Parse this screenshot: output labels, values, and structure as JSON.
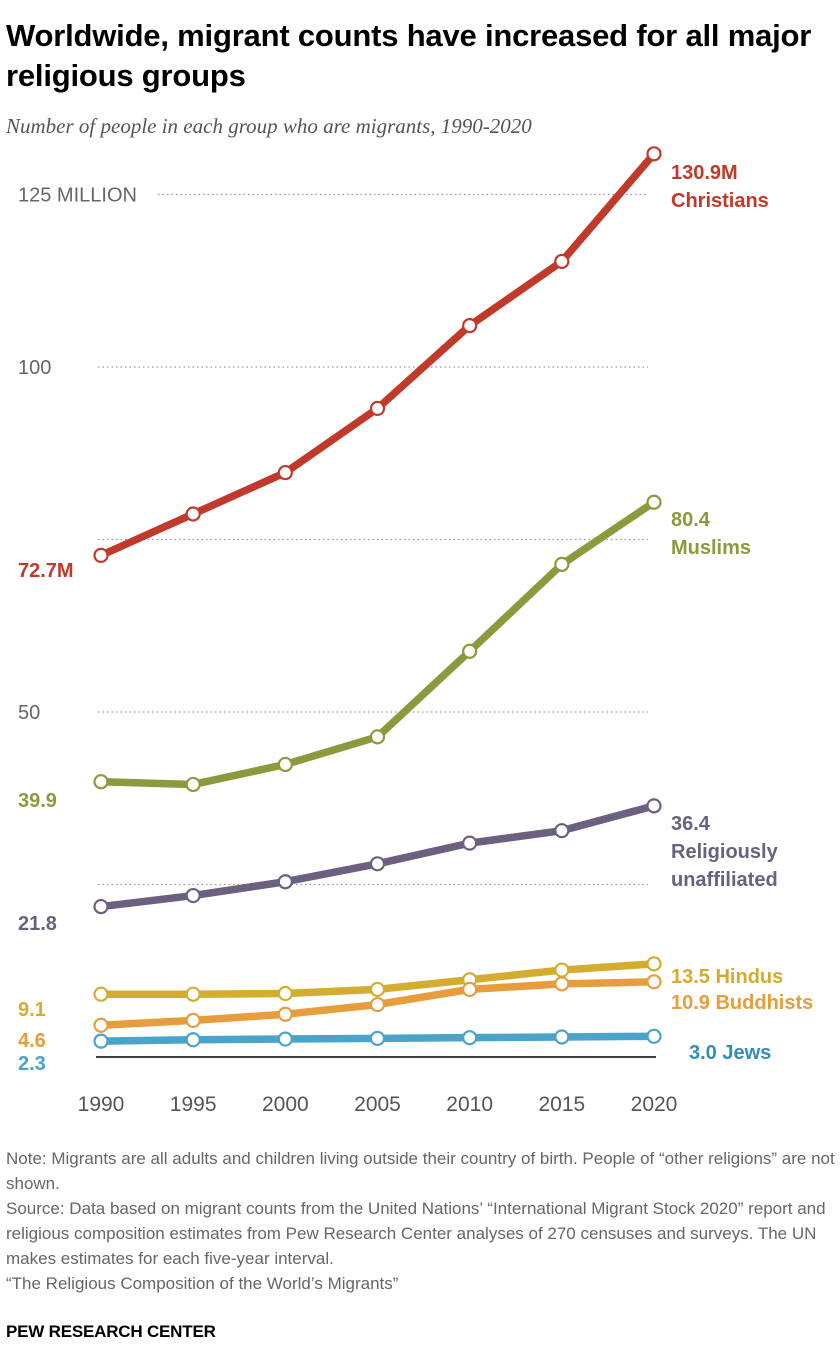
{
  "title": "Worldwide, migrant counts have increased for all major religious groups",
  "subtitle": "Number of people in each group who are migrants, 1990-2020",
  "chart_data": {
    "type": "line",
    "x": [
      1990,
      1995,
      2000,
      2005,
      2010,
      2015,
      2020
    ],
    "ylim": [
      0,
      135
    ],
    "grid": true,
    "gridlines": [
      {
        "value": 125,
        "label": "125 MILLION"
      },
      {
        "value": 100,
        "label": "100"
      },
      {
        "value": 75,
        "label": ""
      },
      {
        "value": 50,
        "label": "50"
      },
      {
        "value": 25,
        "label": ""
      }
    ],
    "legend": "end-labels",
    "series": [
      {
        "name": "Christians",
        "color": "#c0392b",
        "start_label": "72.7M",
        "end_label": "130.9M",
        "values": [
          72.7,
          78.7,
          84.7,
          94.0,
          106.0,
          115.3,
          130.9
        ]
      },
      {
        "name": "Muslims",
        "color": "#8a9a3c",
        "start_label": "39.9",
        "end_label": "80.4",
        "values": [
          39.9,
          39.5,
          42.4,
          46.4,
          58.8,
          71.4,
          80.4
        ]
      },
      {
        "name": "Religiously unaffiliated",
        "color": "#6b6080",
        "start_label": "21.8",
        "end_label": "36.4",
        "values": [
          21.8,
          23.4,
          25.4,
          28.0,
          31.0,
          32.8,
          36.4
        ]
      },
      {
        "name": "Hindus",
        "color": "#d4ac2e",
        "start_label": "9.1",
        "end_label": "13.5",
        "values": [
          9.1,
          9.1,
          9.2,
          9.8,
          11.2,
          12.6,
          13.5
        ]
      },
      {
        "name": "Buddhists",
        "color": "#e89d3c",
        "start_label": "4.6",
        "end_label": "10.9",
        "values": [
          4.6,
          5.3,
          6.2,
          7.6,
          9.8,
          10.6,
          10.9
        ]
      },
      {
        "name": "Jews",
        "color": "#4aa3c9",
        "start_label": "2.3",
        "end_label": "3.0",
        "values": [
          2.3,
          2.5,
          2.6,
          2.7,
          2.8,
          2.9,
          3.0
        ]
      }
    ],
    "end_labels": [
      {
        "lines": [
          "130.9M",
          "Christians"
        ],
        "color": "#c0392b"
      },
      {
        "lines": [
          "80.4",
          "Muslims"
        ],
        "color": "#8a9a3c"
      },
      {
        "lines": [
          "36.4",
          "Religiously",
          "unaffiliated"
        ],
        "color": "#6b6080"
      },
      {
        "lines": [
          "13.5 Hindus"
        ],
        "color": "#d4ac2e"
      },
      {
        "lines": [
          "10.9 Buddhists"
        ],
        "color": "#e89d3c"
      },
      {
        "lines": [
          "3.0 Jews"
        ],
        "color": "#2f8fba"
      }
    ]
  },
  "note": [
    "Note: Migrants are all adults and children living outside their country of birth. People of “other religions” are not shown.",
    "Source: Data based on migrant counts from the United Nations’ “International Migrant Stock 2020” report and religious composition estimates from Pew Research Center analyses of 270 censuses and surveys. The UN makes estimates for each five-year interval.",
    "“The Religious Composition of the World’s Migrants”"
  ],
  "brand": "PEW RESEARCH CENTER",
  "colors": {
    "axis": "#000000",
    "grid": "#999999",
    "tick_text": "#666666"
  }
}
